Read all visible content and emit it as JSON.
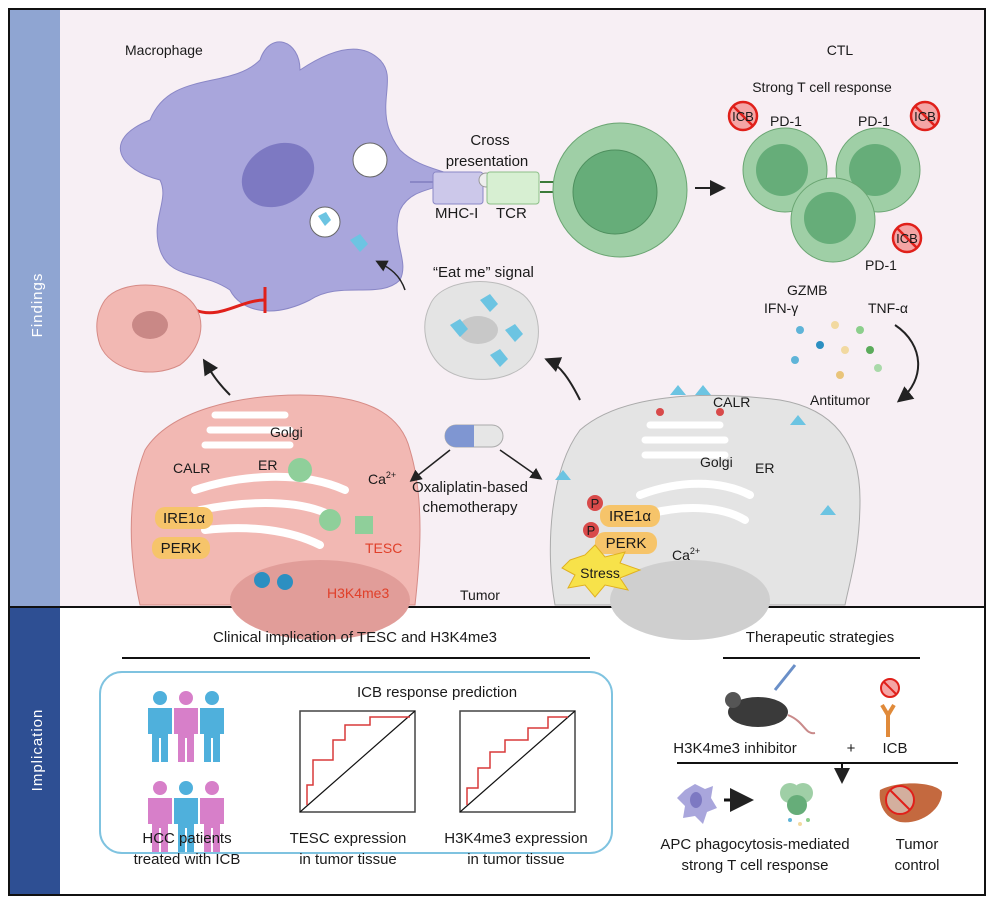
{
  "colors": {
    "findings_band": "#8fa5d2",
    "implication_band": "#2e4f93",
    "findings_bg": "#f7eff4",
    "macrophage": "#a9a6dc",
    "t_cell": "#9fcfa6",
    "tumor_cell": "#f2b8b3",
    "dying_cell": "#e4e4e4",
    "calr": "#6cc4e2",
    "highlight_red": "#e0402a",
    "box_outline": "#7fc3e0"
  },
  "side_labels": {
    "findings": "Findings",
    "implication": "Implication"
  },
  "findings": {
    "macrophage": "Macrophage",
    "ctl": "CTL",
    "strong_response": "Strong T cell response",
    "pd1": [
      "PD-1",
      "PD-1",
      "PD-1"
    ],
    "icb_badge": [
      "ICB",
      "ICB",
      "ICB"
    ],
    "cross_presentation": [
      "Cross",
      "presentation"
    ],
    "mhc": "MHC-I",
    "tcr": "TCR",
    "eat_me": "“Eat me” signal",
    "cytokines": {
      "gzmb": "GZMB",
      "ifn": "IFN-γ",
      "tnf": "TNF-α"
    },
    "antitumor": "Antitumor",
    "tumor": "Tumor",
    "drug": [
      "Oxaliplatin-based",
      "chemotherapy"
    ],
    "left_cell": {
      "golgi": "Golgi",
      "calr": "CALR",
      "er": "ER",
      "ire1a": "IRE1α",
      "perk": "PERK",
      "ca": "Ca",
      "ca_sup": "2+",
      "tesc": "TESC",
      "h3k4me3": "H3K4me3"
    },
    "right_cell": {
      "calr": "CALR",
      "golgi": "Golgi",
      "er": "ER",
      "ire1a": "IRE1α",
      "perk": "PERK",
      "p": "P",
      "ca": "Ca",
      "ca_sup": "2+",
      "stress": "Stress"
    }
  },
  "implication": {
    "clinical_title": "Clinical implication of TESC and H3K4me3",
    "icb_prediction": "ICB response prediction",
    "patients": [
      "HCC patients",
      "treated with ICB"
    ],
    "tesc": [
      "TESC expression",
      "in tumor tissue"
    ],
    "h3k4": [
      "H3K4me3 expression",
      "in tumor tissue"
    ],
    "therapy_title": "Therapeutic strategies",
    "inhibitor": "H3K4me3 inhibitor",
    "plus": "+",
    "icb": "ICB",
    "apc": [
      "APC phagocytosis-mediated",
      "strong T cell response"
    ],
    "tumor_control": [
      "Tumor",
      "control"
    ]
  }
}
